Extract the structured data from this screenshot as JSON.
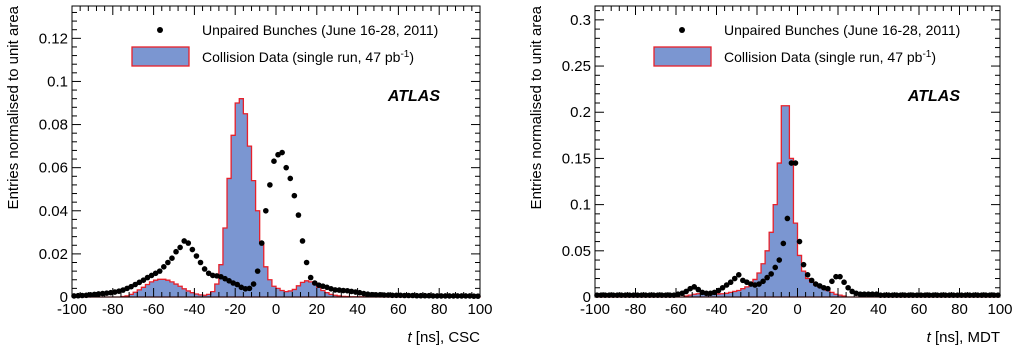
{
  "chart_data": [
    {
      "type": "histogram",
      "xlabel_var": "t",
      "xlabel_rest": " [ns], CSC",
      "ylabel": "Entries normalised to unit area",
      "xlim": [
        -100,
        100
      ],
      "ylim": [
        0,
        0.135
      ],
      "xticks": [
        -100,
        -80,
        -60,
        -40,
        -20,
        0,
        20,
        40,
        60,
        80,
        100
      ],
      "yticks": [
        0,
        0.02,
        0.04,
        0.06,
        0.08,
        0.1,
        0.12
      ],
      "ytick_labels": [
        "0",
        "0.02",
        "0.04",
        "0.06",
        "0.08",
        "0.1",
        "0.12"
      ],
      "experiment_label": "ATLAS",
      "legend": [
        {
          "kind": "marker",
          "text": "Unpaired Bunches (June 16-28, 2011)"
        },
        {
          "kind": "fill",
          "text_before": "Collision Data (single run, 47 pb",
          "text_sup": "-1",
          "text_after": ")"
        }
      ],
      "histogram": {
        "name": "Collision Data (single run, 47 pb-1)",
        "bin_edges_start": -100,
        "bin_width": 2,
        "values": [
          0,
          0,
          0,
          0,
          0,
          0,
          0,
          0,
          0,
          0,
          0,
          0,
          0.0002,
          0.0005,
          0.0012,
          0.0022,
          0.0033,
          0.0045,
          0.0058,
          0.007,
          0.0078,
          0.0082,
          0.0082,
          0.0078,
          0.007,
          0.006,
          0.005,
          0.0038,
          0.0028,
          0.002,
          0.0014,
          0.001,
          0.0008,
          0.0012,
          0.0025,
          0.006,
          0.015,
          0.032,
          0.055,
          0.075,
          0.09,
          0.092,
          0.085,
          0.07,
          0.054,
          0.04,
          0.025,
          0.014,
          0.008,
          0.005,
          0.004,
          0.003,
          0.0025,
          0.0028,
          0.0035,
          0.0052,
          0.0068,
          0.0075,
          0.007,
          0.006,
          0.0045,
          0.003,
          0.002,
          0.0012,
          0.0008,
          0.0005,
          0.0003,
          0.0002,
          0.0001,
          0.0001,
          0.0001,
          0.0001,
          0.0001,
          0.0001,
          0.0001,
          0.0001,
          0.0001,
          0.0001,
          0.0001,
          0.0001,
          0.0001,
          0.0001,
          0.0001,
          0.0001,
          0.0001,
          0.0001,
          0.0001,
          0.0001,
          0.0001,
          0.0001,
          0.0001,
          0.0001,
          0.0001,
          0.0001,
          0.0001,
          0.0001,
          0.0001,
          0.0001,
          0.0001,
          0.0001
        ],
        "fill_color": "#7b96d1",
        "line_color": "#e8202a"
      },
      "points": {
        "name": "Unpaired Bunches (June 16-28, 2011)",
        "color": "#000000",
        "x": [
          -99,
          -97,
          -95,
          -93,
          -91,
          -89,
          -87,
          -85,
          -83,
          -81,
          -79,
          -77,
          -75,
          -73,
          -71,
          -69,
          -67,
          -65,
          -63,
          -61,
          -59,
          -57,
          -55,
          -53,
          -51,
          -49,
          -47,
          -45,
          -43,
          -41,
          -39,
          -37,
          -35,
          -33,
          -31,
          -29,
          -27,
          -25,
          -23,
          -21,
          -19,
          -17,
          -15,
          -13,
          -11,
          -9,
          -7,
          -5,
          -3,
          -1,
          1,
          3,
          5,
          7,
          9,
          11,
          13,
          15,
          17,
          19,
          21,
          23,
          25,
          27,
          29,
          31,
          33,
          35,
          37,
          39,
          41,
          43,
          45,
          47,
          49,
          51,
          53,
          55,
          57,
          59,
          61,
          63,
          65,
          67,
          69,
          71,
          73,
          75,
          77,
          79,
          81,
          83,
          85,
          87,
          89,
          91,
          93,
          95,
          97,
          99
        ],
        "y": [
          0.0005,
          0.0006,
          0.0007,
          0.0008,
          0.001,
          0.0012,
          0.0014,
          0.0016,
          0.0018,
          0.002,
          0.0023,
          0.0027,
          0.0032,
          0.004,
          0.0048,
          0.0058,
          0.0068,
          0.0078,
          0.009,
          0.01,
          0.011,
          0.012,
          0.014,
          0.016,
          0.018,
          0.021,
          0.023,
          0.026,
          0.025,
          0.022,
          0.019,
          0.016,
          0.013,
          0.011,
          0.01,
          0.0098,
          0.0094,
          0.0085,
          0.0075,
          0.0065,
          0.0058,
          0.0045,
          0.0038,
          0.004,
          0.006,
          0.012,
          0.025,
          0.04,
          0.052,
          0.063,
          0.066,
          0.067,
          0.06,
          0.055,
          0.047,
          0.038,
          0.026,
          0.016,
          0.009,
          0.0065,
          0.0055,
          0.005,
          0.0045,
          0.0038,
          0.0033,
          0.0032,
          0.003,
          0.0029,
          0.0026,
          0.0023,
          0.002,
          0.0016,
          0.0013,
          0.0011,
          0.001,
          0.001,
          0.0009,
          0.0009,
          0.0008,
          0.0008,
          0.0008,
          0.0007,
          0.0007,
          0.0007,
          0.0006,
          0.0006,
          0.0006,
          0.0006,
          0.0005,
          0.0005,
          0.0005,
          0.0005,
          0.0005,
          0.0005,
          0.0005,
          0.0005,
          0.0005,
          0.0005,
          0.0004,
          0.0004
        ]
      }
    },
    {
      "type": "histogram",
      "xlabel_var": "t",
      "xlabel_rest": " [ns], MDT",
      "ylabel": "Entries normalised to unit area",
      "xlim": [
        -100,
        100
      ],
      "ylim": [
        0,
        0.315
      ],
      "xticks": [
        -100,
        -80,
        -60,
        -40,
        -20,
        0,
        20,
        40,
        60,
        80,
        100
      ],
      "yticks": [
        0,
        0.05,
        0.1,
        0.15,
        0.2,
        0.25,
        0.3
      ],
      "ytick_labels": [
        "0",
        "0.05",
        "0.1",
        "0.15",
        "0.2",
        "0.25",
        "0.3"
      ],
      "experiment_label": "ATLAS",
      "legend": [
        {
          "kind": "marker",
          "text": "Unpaired Bunches (June 16-28, 2011)"
        },
        {
          "kind": "fill",
          "text_before": "Collision Data (single run, 47 pb",
          "text_sup": "-1",
          "text_after": ")"
        }
      ],
      "histogram": {
        "name": "Collision Data (single run, 47 pb-1)",
        "bin_edges_start": -100,
        "bin_width": 2,
        "values": [
          0,
          0,
          0,
          0,
          0,
          0,
          0,
          0,
          0,
          0,
          0,
          0,
          0,
          0,
          0,
          0,
          0,
          0,
          0,
          0,
          0,
          0,
          0.001,
          0.002,
          0.003,
          0.0035,
          0.004,
          0.004,
          0.0038,
          0.0035,
          0.0033,
          0.0035,
          0.004,
          0.005,
          0.006,
          0.007,
          0.009,
          0.011,
          0.014,
          0.019,
          0.026,
          0.036,
          0.05,
          0.07,
          0.1,
          0.145,
          0.207,
          0.207,
          0.15,
          0.08,
          0.045,
          0.028,
          0.02,
          0.016,
          0.013,
          0.011,
          0.009,
          0.007,
          0.005,
          0.003,
          0.002,
          0.001,
          0,
          0,
          0,
          0,
          0,
          0,
          0,
          0,
          0,
          0,
          0,
          0,
          0,
          0,
          0,
          0,
          0,
          0,
          0,
          0,
          0,
          0,
          0,
          0,
          0,
          0,
          0,
          0,
          0,
          0,
          0,
          0,
          0,
          0,
          0,
          0,
          0,
          0
        ],
        "fill_color": "#7b96d1",
        "line_color": "#e8202a"
      },
      "points": {
        "name": "Unpaired Bunches (June 16-28, 2011)",
        "color": "#000000",
        "x": [
          -99,
          -97,
          -95,
          -93,
          -91,
          -89,
          -87,
          -85,
          -83,
          -81,
          -79,
          -77,
          -75,
          -73,
          -71,
          -69,
          -67,
          -65,
          -63,
          -61,
          -59,
          -57,
          -55,
          -53,
          -51,
          -49,
          -47,
          -45,
          -43,
          -41,
          -39,
          -37,
          -35,
          -33,
          -31,
          -29,
          -27,
          -25,
          -23,
          -21,
          -19,
          -17,
          -15,
          -13,
          -11,
          -9,
          -7,
          -5,
          -3,
          -1,
          1,
          3,
          5,
          7,
          9,
          11,
          13,
          15,
          17,
          19,
          21,
          23,
          25,
          27,
          29,
          31,
          33,
          35,
          37,
          39,
          41,
          43,
          45,
          47,
          49,
          51,
          53,
          55,
          57,
          59,
          61,
          63,
          65,
          67,
          69,
          71,
          73,
          75,
          77,
          79,
          81,
          83,
          85,
          87,
          89,
          91,
          93,
          95,
          97,
          99
        ],
        "y": [
          0.002,
          0.002,
          0.002,
          0.002,
          0.002,
          0.002,
          0.002,
          0.002,
          0.002,
          0.002,
          0.002,
          0.002,
          0.002,
          0.002,
          0.002,
          0.002,
          0.002,
          0.002,
          0.002,
          0.002,
          0.003,
          0.004,
          0.006,
          0.009,
          0.011,
          0.008,
          0.005,
          0.004,
          0.004,
          0.005,
          0.007,
          0.01,
          0.013,
          0.016,
          0.02,
          0.024,
          0.018,
          0.016,
          0.014,
          0.013,
          0.014,
          0.017,
          0.021,
          0.025,
          0.032,
          0.04,
          0.058,
          0.085,
          0.145,
          0.145,
          0.06,
          0.035,
          0.024,
          0.018,
          0.014,
          0.012,
          0.01,
          0.009,
          0.017,
          0.022,
          0.022,
          0.016,
          0.01,
          0.006,
          0.004,
          0.003,
          0.003,
          0.003,
          0.003,
          0.003,
          0.002,
          0.002,
          0.002,
          0.002,
          0.002,
          0.002,
          0.002,
          0.002,
          0.002,
          0.002,
          0.002,
          0.002,
          0.002,
          0.002,
          0.002,
          0.002,
          0.002,
          0.002,
          0.002,
          0.002,
          0.002,
          0.002,
          0.002,
          0.002,
          0.002,
          0.002,
          0.002,
          0.002,
          0.002,
          0.002
        ]
      }
    }
  ]
}
